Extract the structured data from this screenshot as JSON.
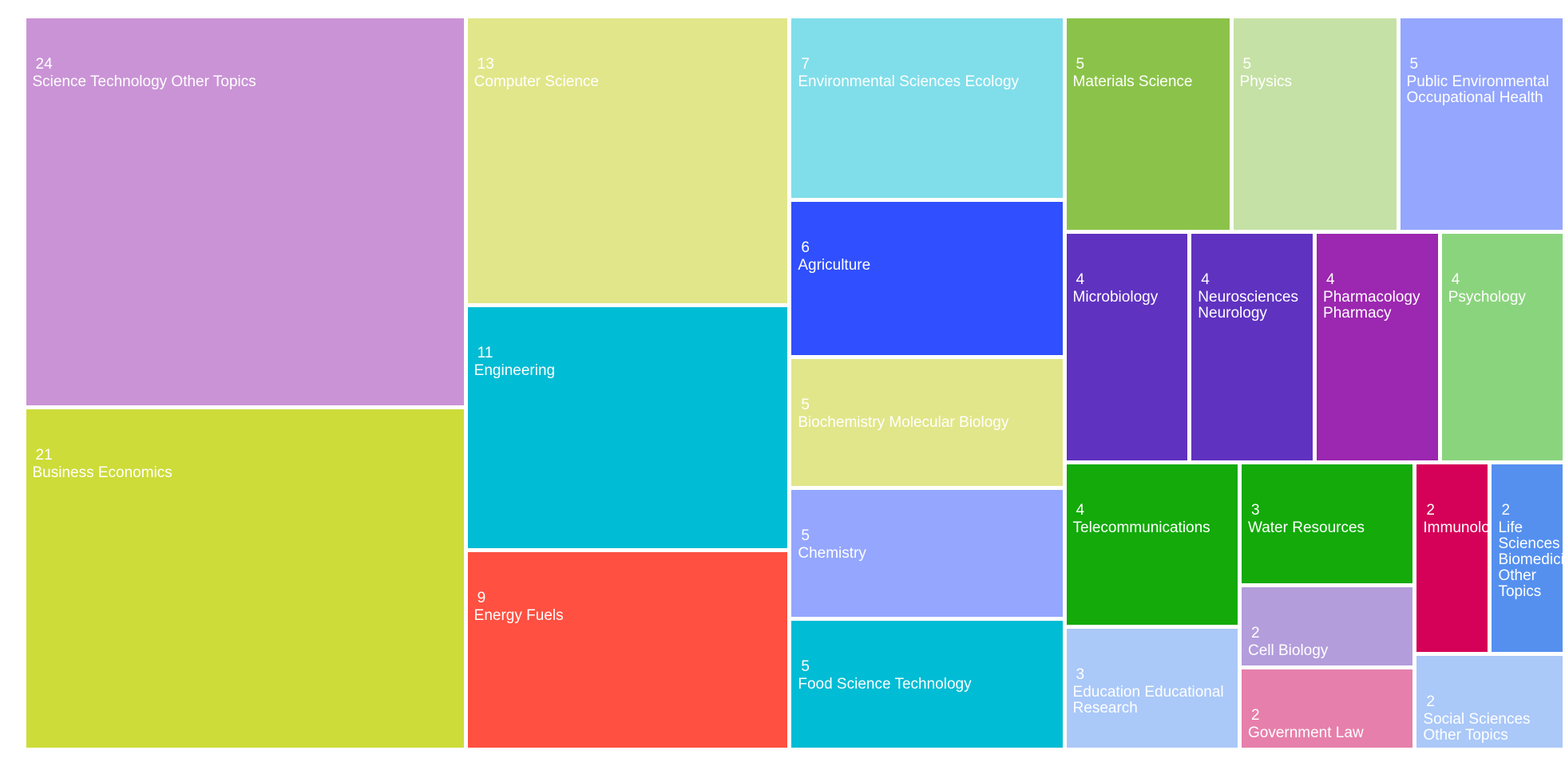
{
  "chart_data": {
    "type": "treemap",
    "categories": [
      "Science Technology Other Topics",
      "Business Economics",
      "Computer Science",
      "Engineering",
      "Energy Fuels",
      "Environmental Sciences Ecology",
      "Agriculture",
      "Biochemistry Molecular Biology",
      "Chemistry",
      "Food Science Technology",
      "Materials Science",
      "Physics",
      "Public Environmental Occupational Health",
      "Microbiology",
      "Neurosciences Neurology",
      "Pharmacology Pharmacy",
      "Psychology",
      "Telecommunications",
      "Education Educational Research",
      "Water Resources",
      "Cell Biology",
      "Government Law",
      "Immunology",
      "Life Sciences Biomedicine Other Topics",
      "Social Sciences Other Topics"
    ],
    "values": [
      24,
      21,
      13,
      11,
      9,
      7,
      6,
      5,
      5,
      5,
      5,
      5,
      5,
      4,
      4,
      4,
      4,
      4,
      3,
      3,
      2,
      2,
      2,
      2,
      2
    ],
    "colors": [
      "#ca93d6",
      "#cddc39",
      "#e1e68a",
      "#00bcd4",
      "#ff5041",
      "#80deea",
      "#304ffe",
      "#e1e68a",
      "#94a6fe",
      "#00bcd4",
      "#8bc34a",
      "#c5e1a5",
      "#94a6fe",
      "#5f32c0",
      "#5f32c0",
      "#9c27b0",
      "#8bd47e",
      "#13aa0a",
      "#aac8f8",
      "#13aa0a",
      "#b39ddb",
      "#e67fab",
      "#d50057",
      "#5590ef",
      "#aac8f8"
    ]
  }
}
